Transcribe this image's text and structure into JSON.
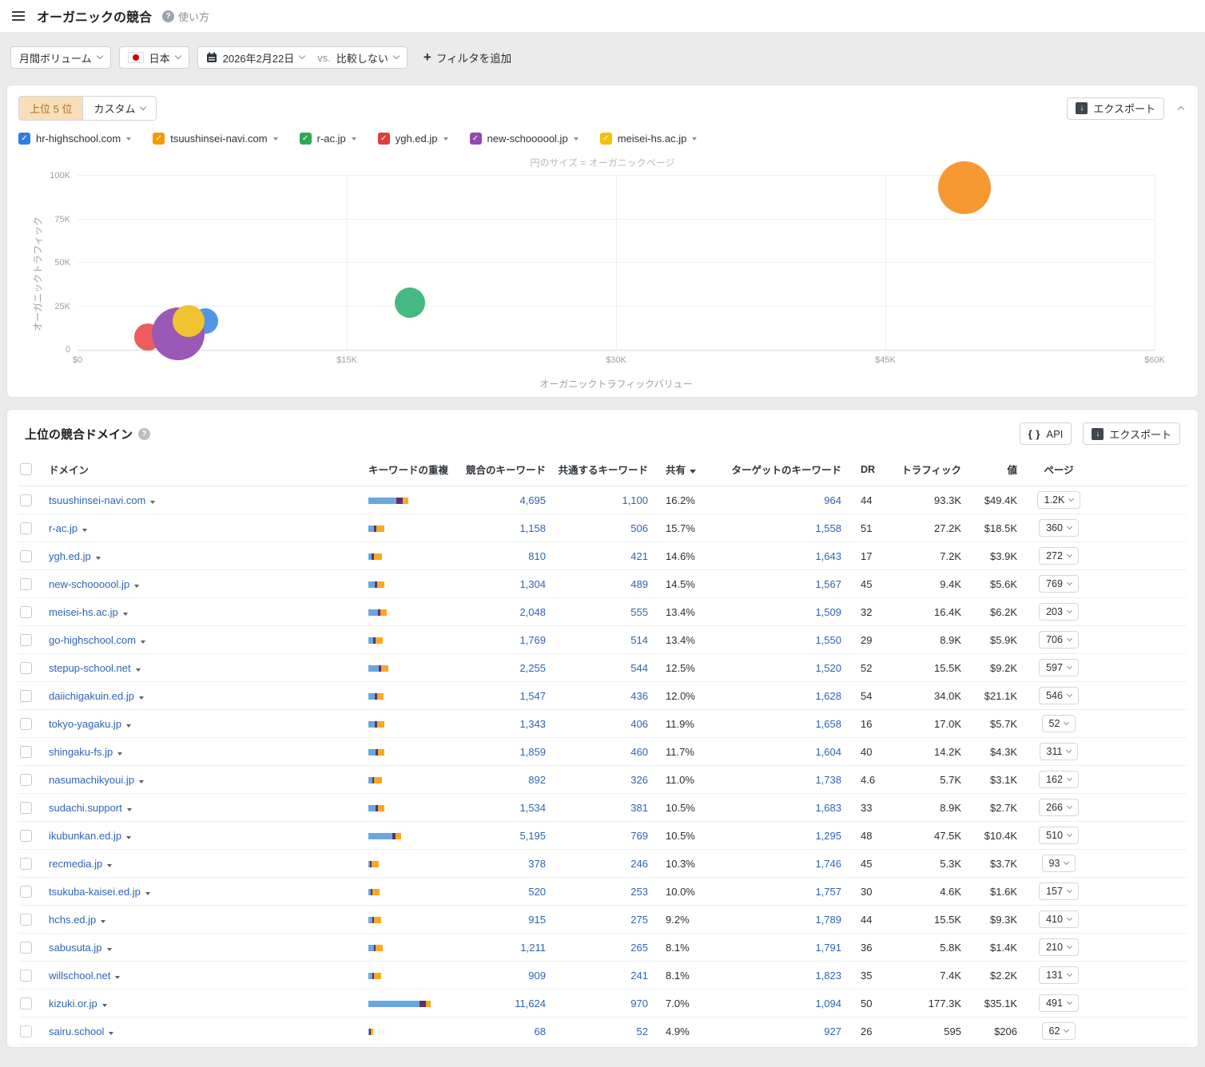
{
  "app": {
    "title": "オーガニックの競合",
    "help_label": "使い方"
  },
  "filters": {
    "volume_label": "月間ボリューム",
    "country_label": "日本",
    "date_label": "2026年2月22日",
    "vs_label": "vs.",
    "compare_label": "比較しない",
    "add_filter_label": "フィルタを追加"
  },
  "chart_section": {
    "tab_top_label": "上位 5 位",
    "tab_custom_label": "カスタム",
    "export_label": "エクスポート",
    "legend": [
      {
        "label": "hr-highschool.com",
        "color": "#2f7de0"
      },
      {
        "label": "tsuushinsei-navi.com",
        "color": "#f59b00"
      },
      {
        "label": "r-ac.jp",
        "color": "#33a853"
      },
      {
        "label": "ygh.ed.jp",
        "color": "#e23d3d"
      },
      {
        "label": "new-schoooool.jp",
        "color": "#8f4bae"
      },
      {
        "label": "meisei-hs.ac.jp",
        "color": "#f2c100"
      }
    ],
    "chart_data": {
      "type": "scatter",
      "title": "円のサイズ = オーガニックページ",
      "xlabel": "オーガニックトラフィックバリュー",
      "ylabel": "オーガニックトラフィック",
      "xlim": [
        0,
        60000
      ],
      "ylim": [
        0,
        100000
      ],
      "x_ticks": [
        "$0",
        "$15K",
        "$30K",
        "$45K",
        "$60K"
      ],
      "y_ticks": [
        "0",
        "25K",
        "50K",
        "75K",
        "100K"
      ],
      "points": [
        {
          "name": "hr-highschool.com",
          "x": 7100,
          "y": 16500,
          "r": 16,
          "color": "#4f97e3"
        },
        {
          "name": "ygh.ed.jp",
          "x": 3900,
          "y": 7200,
          "r": 17,
          "color": "#ef5c5c"
        },
        {
          "name": "new-schoooool.jp",
          "x": 5600,
          "y": 9400,
          "r": 33,
          "color": "#9a59b5"
        },
        {
          "name": "meisei-hs.ac.jp",
          "x": 6200,
          "y": 16400,
          "r": 20,
          "color": "#f0c430"
        },
        {
          "name": "r-ac.jp",
          "x": 18500,
          "y": 27200,
          "r": 19,
          "color": "#46b881"
        },
        {
          "name": "tsuushinsei-navi.com",
          "x": 49400,
          "y": 93300,
          "r": 33,
          "color": "#f79832"
        }
      ]
    }
  },
  "table": {
    "title": "上位の競合ドメイン",
    "api_label": "API",
    "export_label": "エクスポート",
    "sorted_column": "共有",
    "columns": [
      "ドメイン",
      "キーワードの重複",
      "競合のキーワード",
      "共通するキーワード",
      "共有",
      "ターゲットのキーワード",
      "DR",
      "トラフィック",
      "値",
      "ページ"
    ],
    "rows": [
      {
        "domain": "tsuushinsei-navi.com",
        "bar": [
          35,
          8,
          7
        ],
        "competitor_kw": "4,695",
        "common_kw": "1,100",
        "share": "16.2%",
        "target_kw": "964",
        "dr": "44",
        "traffic": "93.3K",
        "value": "$49.4K",
        "pages": "1.2K"
      },
      {
        "domain": "r-ac.jp",
        "bar": [
          7,
          3,
          10
        ],
        "competitor_kw": "1,158",
        "common_kw": "506",
        "share": "15.7%",
        "target_kw": "1,558",
        "dr": "51",
        "traffic": "27.2K",
        "value": "$18.5K",
        "pages": "360"
      },
      {
        "domain": "ygh.ed.jp",
        "bar": [
          4,
          3,
          10
        ],
        "competitor_kw": "810",
        "common_kw": "421",
        "share": "14.6%",
        "target_kw": "1,643",
        "dr": "17",
        "traffic": "7.2K",
        "value": "$3.9K",
        "pages": "272"
      },
      {
        "domain": "new-schoooool.jp",
        "bar": [
          8,
          3,
          9
        ],
        "competitor_kw": "1,304",
        "common_kw": "489",
        "share": "14.5%",
        "target_kw": "1,567",
        "dr": "45",
        "traffic": "9.4K",
        "value": "$5.6K",
        "pages": "769"
      },
      {
        "domain": "meisei-hs.ac.jp",
        "bar": [
          12,
          3,
          8
        ],
        "competitor_kw": "2,048",
        "common_kw": "555",
        "share": "13.4%",
        "target_kw": "1,509",
        "dr": "32",
        "traffic": "16.4K",
        "value": "$6.2K",
        "pages": "203"
      },
      {
        "domain": "go-highschool.com",
        "bar": [
          6,
          3,
          9
        ],
        "competitor_kw": "1,769",
        "common_kw": "514",
        "share": "13.4%",
        "target_kw": "1,550",
        "dr": "29",
        "traffic": "8.9K",
        "value": "$5.9K",
        "pages": "706"
      },
      {
        "domain": "stepup-school.net",
        "bar": [
          13,
          3,
          9
        ],
        "competitor_kw": "2,255",
        "common_kw": "544",
        "share": "12.5%",
        "target_kw": "1,520",
        "dr": "52",
        "traffic": "15.5K",
        "value": "$9.2K",
        "pages": "597"
      },
      {
        "domain": "daiichigakuin.ed.jp",
        "bar": [
          8,
          3,
          8
        ],
        "competitor_kw": "1,547",
        "common_kw": "436",
        "share": "12.0%",
        "target_kw": "1,628",
        "dr": "54",
        "traffic": "34.0K",
        "value": "$21.1K",
        "pages": "546"
      },
      {
        "domain": "tokyo-yagaku.jp",
        "bar": [
          8,
          3,
          9
        ],
        "competitor_kw": "1,343",
        "common_kw": "406",
        "share": "11.9%",
        "target_kw": "1,658",
        "dr": "16",
        "traffic": "17.0K",
        "value": "$5.7K",
        "pages": "52"
      },
      {
        "domain": "shingaku-fs.jp",
        "bar": [
          9,
          3,
          8
        ],
        "competitor_kw": "1,859",
        "common_kw": "460",
        "share": "11.7%",
        "target_kw": "1,604",
        "dr": "40",
        "traffic": "14.2K",
        "value": "$4.3K",
        "pages": "311"
      },
      {
        "domain": "nasumachikyoui.jp",
        "bar": [
          5,
          2,
          10
        ],
        "competitor_kw": "892",
        "common_kw": "326",
        "share": "11.0%",
        "target_kw": "1,738",
        "dr": "4.6",
        "traffic": "5.7K",
        "value": "$3.1K",
        "pages": "162"
      },
      {
        "domain": "sudachi.support",
        "bar": [
          9,
          3,
          8
        ],
        "competitor_kw": "1,534",
        "common_kw": "381",
        "share": "10.5%",
        "target_kw": "1,683",
        "dr": "33",
        "traffic": "8.9K",
        "value": "$2.7K",
        "pages": "266"
      },
      {
        "domain": "ikubunkan.ed.jp",
        "bar": [
          30,
          4,
          7
        ],
        "competitor_kw": "5,195",
        "common_kw": "769",
        "share": "10.5%",
        "target_kw": "1,295",
        "dr": "48",
        "traffic": "47.5K",
        "value": "$10.4K",
        "pages": "510"
      },
      {
        "domain": "recmedia.jp",
        "bar": [
          2,
          2,
          9
        ],
        "competitor_kw": "378",
        "common_kw": "246",
        "share": "10.3%",
        "target_kw": "1,746",
        "dr": "45",
        "traffic": "5.3K",
        "value": "$3.7K",
        "pages": "93"
      },
      {
        "domain": "tsukuba-kaisei.ed.jp",
        "bar": [
          3,
          2,
          9
        ],
        "competitor_kw": "520",
        "common_kw": "253",
        "share": "10.0%",
        "target_kw": "1,757",
        "dr": "30",
        "traffic": "4.6K",
        "value": "$1.6K",
        "pages": "157"
      },
      {
        "domain": "hchs.ed.jp",
        "bar": [
          5,
          2,
          9
        ],
        "competitor_kw": "915",
        "common_kw": "275",
        "share": "9.2%",
        "target_kw": "1,789",
        "dr": "44",
        "traffic": "15.5K",
        "value": "$9.3K",
        "pages": "410"
      },
      {
        "domain": "sabusuta.jp",
        "bar": [
          7,
          2,
          9
        ],
        "competitor_kw": "1,211",
        "common_kw": "265",
        "share": "8.1%",
        "target_kw": "1,791",
        "dr": "36",
        "traffic": "5.8K",
        "value": "$1.4K",
        "pages": "210"
      },
      {
        "domain": "willschool.net",
        "bar": [
          5,
          2,
          9
        ],
        "competitor_kw": "909",
        "common_kw": "241",
        "share": "8.1%",
        "target_kw": "1,823",
        "dr": "35",
        "traffic": "7.4K",
        "value": "$2.2K",
        "pages": "131"
      },
      {
        "domain": "kizuki.or.jp",
        "bar": [
          64,
          8,
          6
        ],
        "competitor_kw": "11,624",
        "common_kw": "970",
        "share": "7.0%",
        "target_kw": "1,094",
        "dr": "50",
        "traffic": "177.3K",
        "value": "$35.1K",
        "pages": "491"
      },
      {
        "domain": "sairu.school",
        "bar": [
          1,
          2,
          3
        ],
        "competitor_kw": "68",
        "common_kw": "52",
        "share": "4.9%",
        "target_kw": "927",
        "dr": "26",
        "traffic": "595",
        "value": "$206",
        "pages": "62"
      }
    ]
  },
  "colors": {
    "bar_blue": "#6aa7e0",
    "bar_purple": "#5e3365",
    "bar_orange": "#f9a825",
    "link": "#2d64b5"
  }
}
